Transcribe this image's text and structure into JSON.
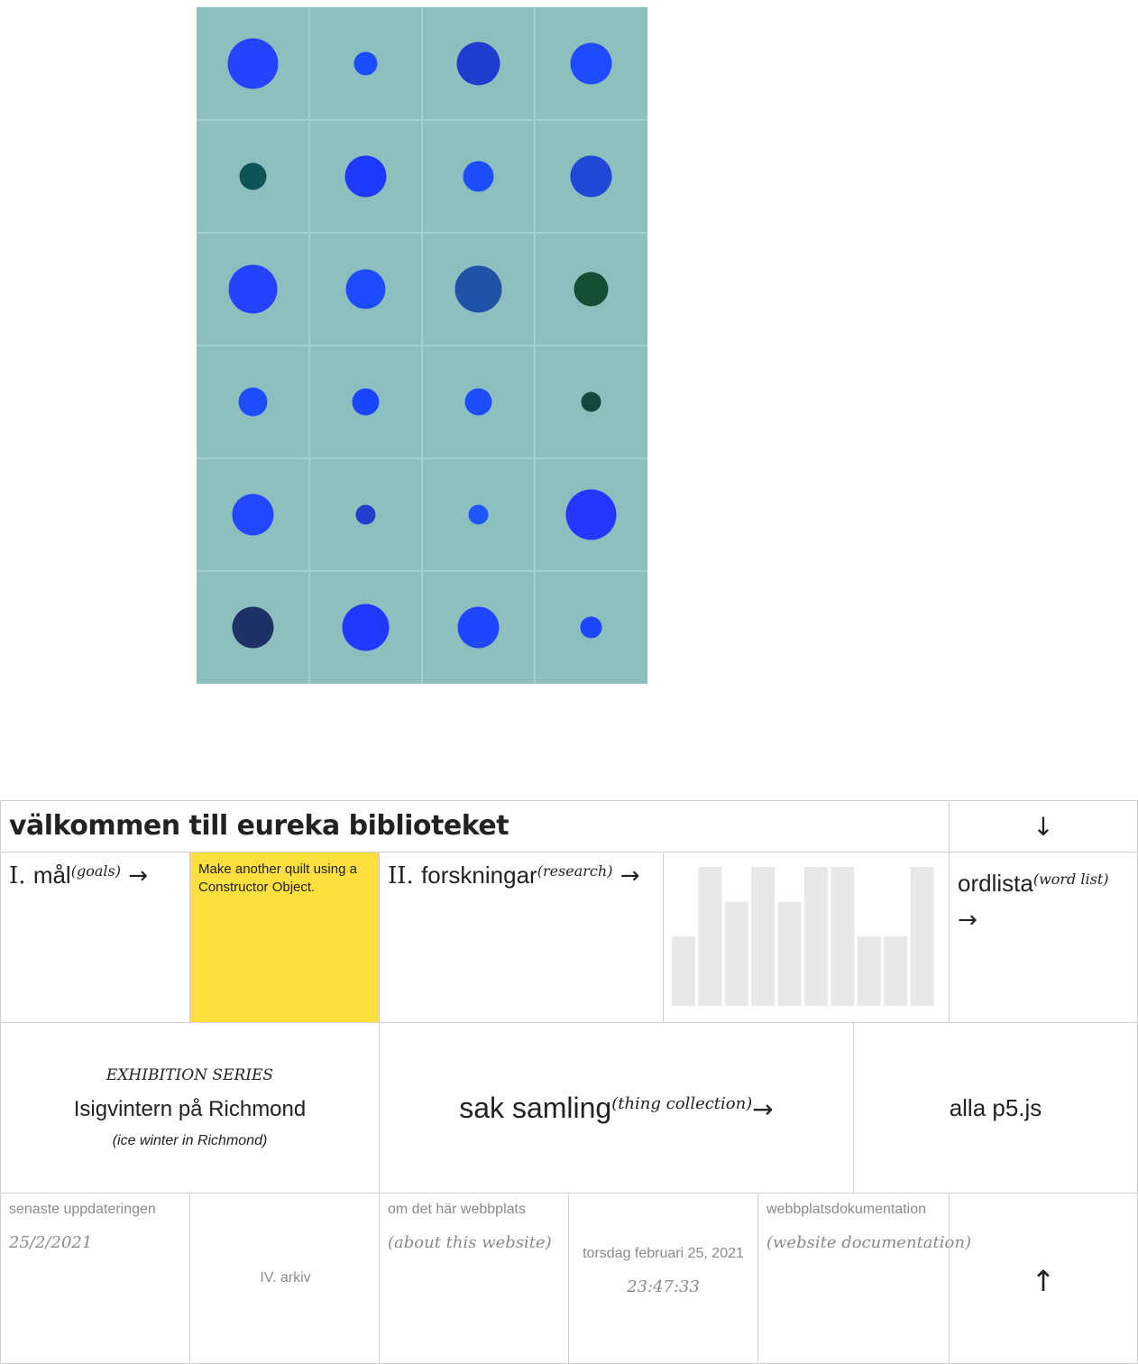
{
  "quilt": {
    "background": "#8cbfbd",
    "grid_line_color": "#9ed3cf",
    "columns": 4,
    "rows": 6,
    "dots": [
      {
        "col": 0,
        "row": 0,
        "d": 56,
        "color": "#2743ff"
      },
      {
        "col": 1,
        "row": 0,
        "d": 26,
        "color": "#1a4dff"
      },
      {
        "col": 2,
        "row": 0,
        "d": 48,
        "color": "#1f3dcc"
      },
      {
        "col": 3,
        "row": 0,
        "d": 46,
        "color": "#1f4cff"
      },
      {
        "col": 0,
        "row": 1,
        "d": 30,
        "color": "#0e5457"
      },
      {
        "col": 1,
        "row": 1,
        "d": 46,
        "color": "#2039ff"
      },
      {
        "col": 2,
        "row": 1,
        "d": 34,
        "color": "#1e4dff"
      },
      {
        "col": 3,
        "row": 1,
        "d": 46,
        "color": "#2047d6"
      },
      {
        "col": 0,
        "row": 2,
        "d": 54,
        "color": "#2642ff"
      },
      {
        "col": 1,
        "row": 2,
        "d": 44,
        "color": "#1f4bff"
      },
      {
        "col": 2,
        "row": 2,
        "d": 52,
        "color": "#2251a8"
      },
      {
        "col": 3,
        "row": 2,
        "d": 38,
        "color": "#134d33"
      },
      {
        "col": 0,
        "row": 3,
        "d": 32,
        "color": "#1e4dff"
      },
      {
        "col": 1,
        "row": 3,
        "d": 30,
        "color": "#1a46ff"
      },
      {
        "col": 2,
        "row": 3,
        "d": 30,
        "color": "#1e4dff"
      },
      {
        "col": 3,
        "row": 3,
        "d": 22,
        "color": "#10483e"
      },
      {
        "col": 0,
        "row": 4,
        "d": 46,
        "color": "#2346ff"
      },
      {
        "col": 1,
        "row": 4,
        "d": 22,
        "color": "#1f3fcc"
      },
      {
        "col": 2,
        "row": 4,
        "d": 22,
        "color": "#1e57ff"
      },
      {
        "col": 3,
        "row": 4,
        "d": 56,
        "color": "#2436ff"
      },
      {
        "col": 0,
        "row": 5,
        "d": 46,
        "color": "#1e3265"
      },
      {
        "col": 1,
        "row": 5,
        "d": 52,
        "color": "#2139ff"
      },
      {
        "col": 2,
        "row": 5,
        "d": 46,
        "color": "#2047ff"
      },
      {
        "col": 3,
        "row": 5,
        "d": 24,
        "color": "#1e47ff"
      }
    ]
  },
  "header": {
    "title": "välkommen till eureka biblioteket",
    "scroll_down_icon": "arrow-down-icon",
    "scroll_down_glyph": "↓"
  },
  "nav": {
    "goals_numeral": "I.",
    "goals_label": "mål",
    "goals_sub": "(goals)",
    "research_numeral": "II.",
    "research_label": "forskningar",
    "research_sub": "(research)",
    "wordlist_label": "ordlista",
    "wordlist_sub": "(word list)",
    "arrow_glyph": "→"
  },
  "note": {
    "text": "Make another quilt using a Constructor Object.",
    "color": "#fddf3d"
  },
  "bars": {
    "color": "#e8e8e8",
    "values": [
      0.5,
      1.0,
      0.75,
      1.0,
      0.75,
      1.0,
      1.0,
      0.5,
      0.5,
      1.0
    ]
  },
  "exhibition": {
    "kicker": "EXHIBITION SERIES",
    "title": "Isigvintern på Richmond",
    "sub": "(ice winter in Richmond)"
  },
  "collection": {
    "label": "sak samling",
    "sub": "(thing collection)"
  },
  "p5": {
    "label": "alla p5.js"
  },
  "footer": {
    "updates_label": "senaste uppdateringen",
    "updates_date": "25/2/2021",
    "archive_label": "IV. arkiv",
    "about_label": "om det här webbplats",
    "about_sub": "(about this website)",
    "date_text": "torsdag februari 25, 2021",
    "time_text": "23:47:33",
    "docs_label": "webbplatsdokumentation",
    "docs_sub": "(website documentation)",
    "top_icon": "arrow-up-icon",
    "top_glyph": "↑"
  }
}
